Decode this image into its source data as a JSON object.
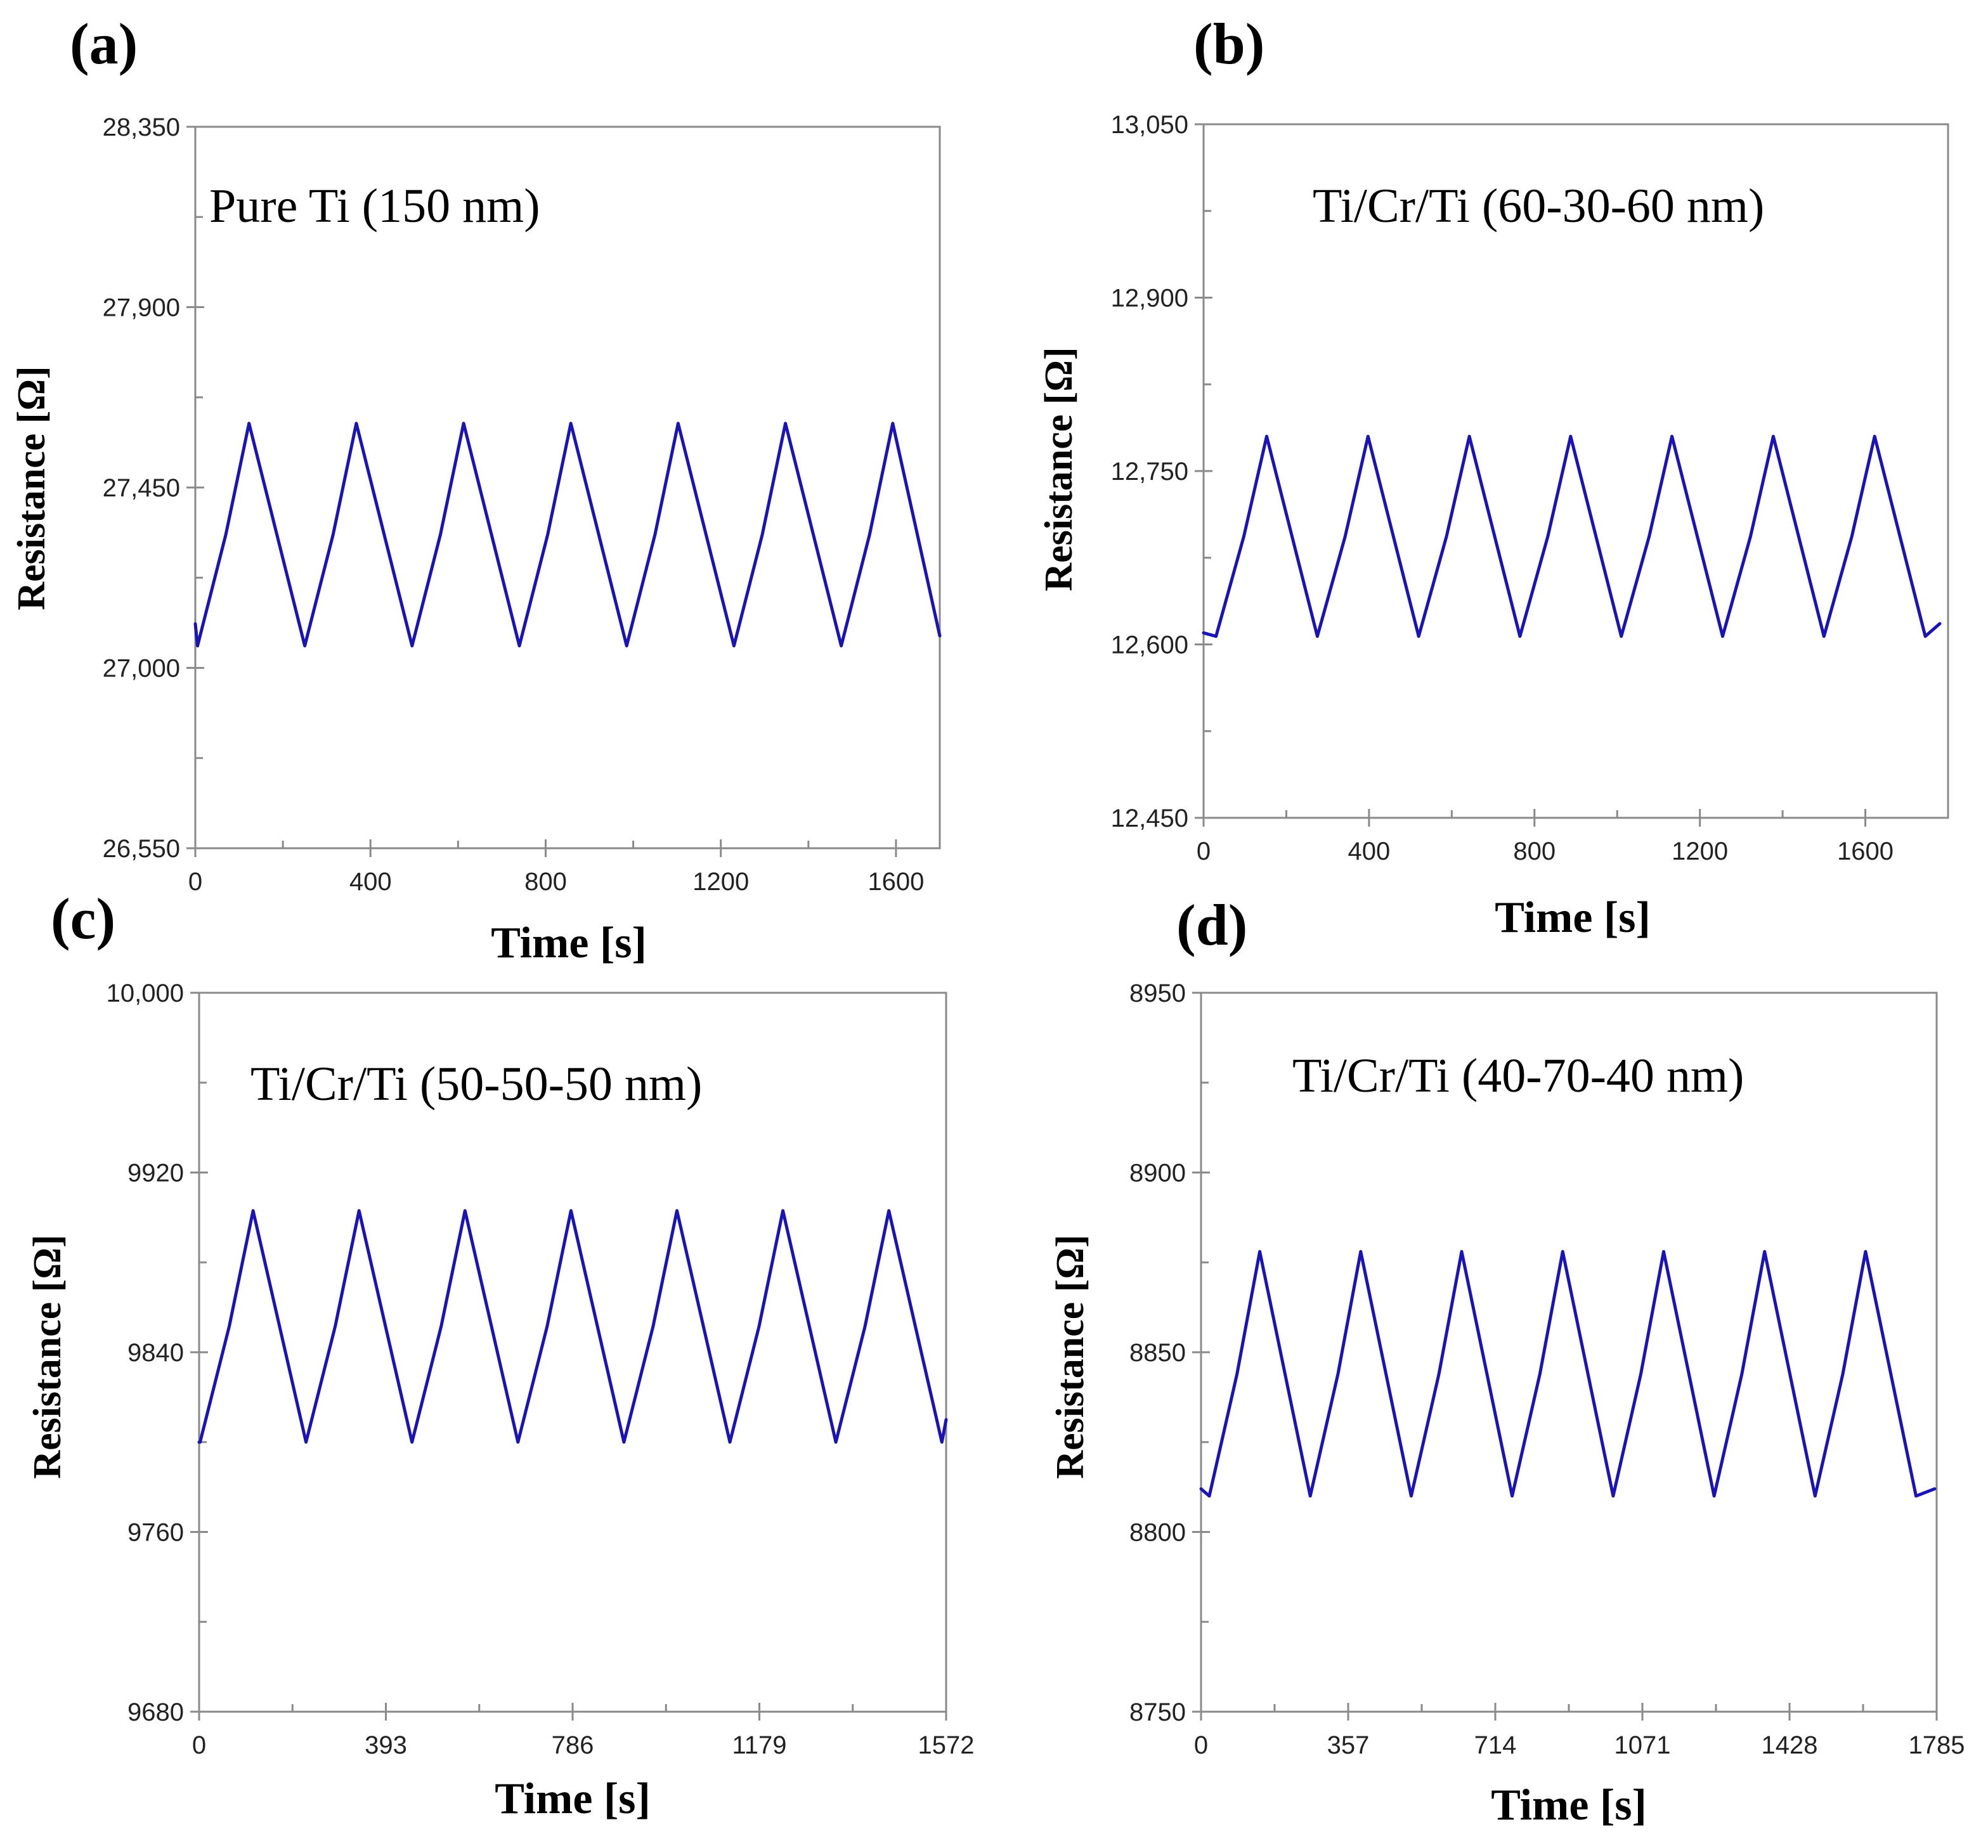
{
  "colors": {
    "series": "#1a14b8",
    "axis": "#8a8a8a",
    "text": "#000000"
  },
  "chart_data": [
    {
      "type": "line",
      "panel_label": "(a)",
      "annotation": "Pure Ti (150 nm)",
      "xlabel": "Time [s]",
      "ylabel": "Resistance [Ω]",
      "xlim": [
        0,
        1700
      ],
      "ylim": [
        26550,
        28350
      ],
      "xticks": [
        0,
        400,
        800,
        1200,
        1600
      ],
      "xtick_labels": [
        "0",
        "400",
        "800",
        "1200",
        "1600"
      ],
      "yticks": [
        26550,
        27000,
        27450,
        27900,
        28350
      ],
      "ytick_labels": [
        "26,550",
        "27,000",
        "27,450",
        "27,900",
        "28,350"
      ],
      "period": 245,
      "trough_x": 250,
      "trough_y": 27055,
      "peak_y": 27610,
      "rise_fraction": 0.48,
      "start_y": 27110,
      "end_x": 1700,
      "end_y": 27080
    },
    {
      "type": "line",
      "panel_label": "(b)",
      "annotation": "Ti/Cr/Ti (60-30-60 nm)",
      "xlabel": "Time [s]",
      "ylabel": "Resistance [Ω]",
      "xlim": [
        0,
        1800
      ],
      "ylim": [
        12450,
        13050
      ],
      "xticks": [
        0,
        400,
        800,
        1200,
        1600
      ],
      "xtick_labels": [
        "0",
        "400",
        "800",
        "1200",
        "1600"
      ],
      "yticks": [
        12450,
        12600,
        12750,
        12900,
        13050
      ],
      "ytick_labels": [
        "12,450",
        "12,600",
        "12,750",
        "12,900",
        "13,050"
      ],
      "period": 245,
      "trough_x": 275,
      "trough_y": 12607,
      "peak_y": 12780,
      "rise_fraction": 0.5,
      "start_y": 12610,
      "end_x": 1780,
      "end_y": 12618
    },
    {
      "type": "line",
      "panel_label": "(c)",
      "annotation": "Ti/Cr/Ti (50-50-50 nm)",
      "xlabel": "Time [s]",
      "ylabel": "Resistance [Ω]",
      "xlim": [
        0,
        1572
      ],
      "ylim": [
        9680,
        10000
      ],
      "xticks": [
        0,
        393,
        786,
        1179,
        1572
      ],
      "xtick_labels": [
        "0",
        "393",
        "786",
        "1179",
        "1572"
      ],
      "yticks": [
        9680,
        9760,
        9840,
        9920,
        10000
      ],
      "ytick_labels": [
        "9680",
        "9760",
        "9840",
        "9920",
        "10,000"
      ],
      "period": 223,
      "trough_x": 225,
      "trough_y": 9800,
      "peak_y": 9903,
      "rise_fraction": 0.5,
      "start_y": 9800,
      "end_x": 1572,
      "end_y": 9810
    },
    {
      "type": "line",
      "panel_label": "(d)",
      "annotation": "Ti/Cr/Ti (40-70-40 nm)",
      "xlabel": "Time [s]",
      "ylabel": "Resistance [Ω]",
      "xlim": [
        0,
        1785
      ],
      "ylim": [
        8750,
        8950
      ],
      "xticks": [
        0,
        357,
        714,
        1071,
        1428,
        1785
      ],
      "xtick_labels": [
        "0",
        "357",
        "714",
        "1071",
        "1428",
        "1785"
      ],
      "yticks": [
        8750,
        8800,
        8850,
        8900,
        8950
      ],
      "ytick_labels": [
        "8750",
        "8800",
        "8850",
        "8900",
        "8950"
      ],
      "period": 245,
      "trough_x": 265,
      "trough_y": 8810,
      "peak_y": 8878,
      "rise_fraction": 0.5,
      "start_y": 8812,
      "end_x": 1780,
      "end_y": 8812
    }
  ]
}
